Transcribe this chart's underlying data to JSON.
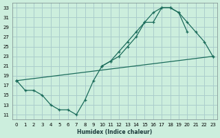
{
  "xlabel": "Humidex (Indice chaleur)",
  "background_color": "#cceedd",
  "grid_color": "#aacccc",
  "line_color": "#1a6b5a",
  "xlim": [
    -0.5,
    23.5
  ],
  "ylim": [
    10,
    34
  ],
  "xticks": [
    0,
    1,
    2,
    3,
    4,
    5,
    6,
    7,
    8,
    9,
    10,
    11,
    12,
    13,
    14,
    15,
    16,
    17,
    18,
    19,
    20,
    21,
    22,
    23
  ],
  "yticks": [
    11,
    13,
    15,
    17,
    19,
    21,
    23,
    25,
    27,
    29,
    31,
    33
  ],
  "c1x": [
    0,
    1,
    2,
    3,
    4,
    5,
    6,
    7,
    8,
    9,
    10,
    11,
    12,
    13,
    14,
    15,
    16,
    17,
    18,
    19,
    20
  ],
  "c1y": [
    18,
    16,
    16,
    15,
    13,
    12,
    12,
    11,
    14,
    18,
    21,
    22,
    23,
    25,
    27,
    30,
    30,
    33,
    33,
    32,
    28
  ],
  "c2x": [
    0,
    10,
    11,
    12,
    13,
    14,
    15,
    16,
    17,
    18,
    19,
    20,
    21,
    22,
    23
  ],
  "c2y": [
    18,
    21,
    22,
    24,
    26,
    28,
    30,
    32,
    33,
    33,
    32,
    30,
    28,
    26,
    23
  ],
  "c3x": [
    0,
    23
  ],
  "c3y": [
    18,
    23
  ]
}
